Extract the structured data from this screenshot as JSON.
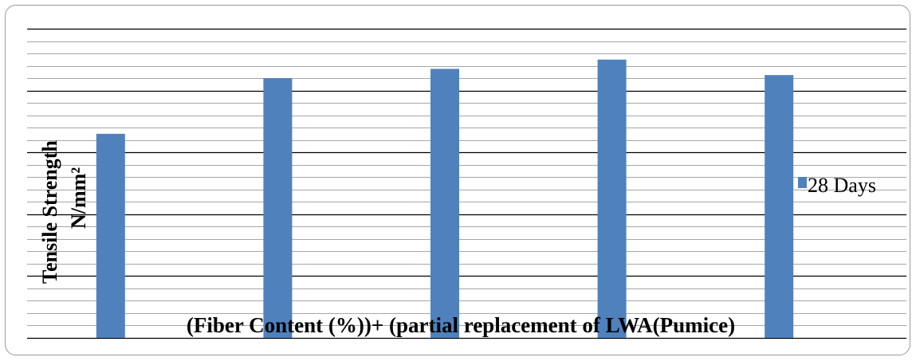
{
  "chart_data": {
    "type": "bar",
    "categories": [
      "",
      "",
      "",
      "",
      ""
    ],
    "series": [
      {
        "name": "28 Days",
        "values": [
          3.3,
          4.2,
          4.35,
          4.5,
          4.25
        ],
        "color": "#4f81bd"
      }
    ],
    "title": "",
    "xlabel": "(Fiber Content (%))+ (partial replacement of LWA(Pumice)",
    "ylabel_line1": "Tensile Strength",
    "ylabel_line2": "N/mm²",
    "ylim": [
      0,
      5
    ],
    "major_step": 1,
    "minor_step": 0.2,
    "grid": true,
    "legend_position": "right"
  }
}
